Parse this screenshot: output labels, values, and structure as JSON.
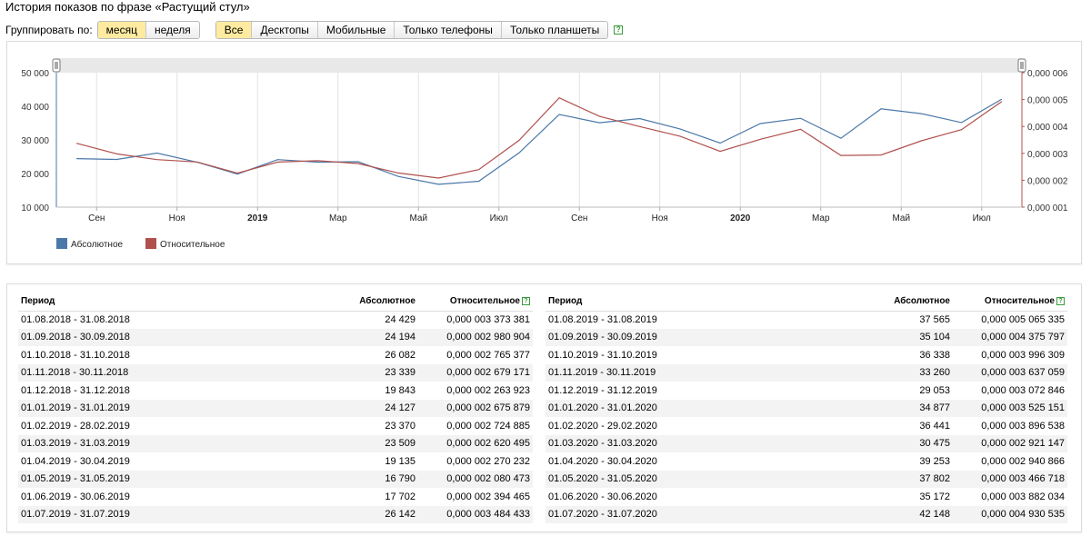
{
  "title": "История показов по фразе «Растущий стул»",
  "group": {
    "label": "Группировать по:",
    "options": [
      "месяц",
      "неделя"
    ],
    "selected": 0
  },
  "devices": {
    "options": [
      "Все",
      "Десктопы",
      "Мобильные",
      "Только телефоны",
      "Только планшеты"
    ],
    "selected": 0,
    "help": "?"
  },
  "chart_data": {
    "type": "line",
    "categories": [
      "2018-08",
      "2018-09",
      "2018-10",
      "2018-11",
      "2018-12",
      "2019-01",
      "2019-02",
      "2019-03",
      "2019-04",
      "2019-05",
      "2019-06",
      "2019-07",
      "2019-08",
      "2019-09",
      "2019-10",
      "2019-11",
      "2019-12",
      "2020-01",
      "2020-02",
      "2020-03",
      "2020-04",
      "2020-05",
      "2020-06",
      "2020-07"
    ],
    "x_tick_labels": [
      "Сен",
      "Ноя",
      "2019",
      "Мар",
      "Май",
      "Июл",
      "Сен",
      "Ноя",
      "2020",
      "Мар",
      "Май",
      "Июл"
    ],
    "y_left_ticks": [
      "10 000",
      "20 000",
      "30 000",
      "40 000",
      "50 000"
    ],
    "y_right_ticks": [
      "0,000 001",
      "0,000 002",
      "0,000 003",
      "0,000 004",
      "0,000 005",
      "0,000 006"
    ],
    "y_left_range": [
      10000,
      50000
    ],
    "y_right_range": [
      1e-06,
      6e-06
    ],
    "series": [
      {
        "name": "Абсолютное",
        "color": "#4a78a8",
        "axis": "left",
        "values": [
          24429,
          24194,
          26082,
          23339,
          19843,
          24127,
          23370,
          23509,
          19135,
          16790,
          17702,
          26142,
          37565,
          35104,
          36338,
          33260,
          29053,
          34877,
          36441,
          30475,
          39253,
          37802,
          35172,
          42148
        ]
      },
      {
        "name": "Относительное",
        "color": "#b0504d",
        "axis": "right",
        "values": [
          3.373381e-06,
          2.980904e-06,
          2.765377e-06,
          2.679171e-06,
          2.263923e-06,
          2.675879e-06,
          2.724885e-06,
          2.620495e-06,
          2.270232e-06,
          2.080473e-06,
          2.394465e-06,
          3.484433e-06,
          5.065335e-06,
          4.375797e-06,
          3.996309e-06,
          3.637059e-06,
          3.072846e-06,
          3.525151e-06,
          3.896538e-06,
          2.921147e-06,
          2.940866e-06,
          3.466718e-06,
          3.882034e-06,
          4.930535e-06
        ]
      }
    ]
  },
  "table": {
    "headers": {
      "period": "Период",
      "absolute": "Абсолютное",
      "relative": "Относительное",
      "help": "?"
    },
    "left": [
      [
        "01.08.2018 - 31.08.2018",
        "24 429",
        "0,000 003 373 381"
      ],
      [
        "01.09.2018 - 30.09.2018",
        "24 194",
        "0,000 002 980 904"
      ],
      [
        "01.10.2018 - 31.10.2018",
        "26 082",
        "0,000 002 765 377"
      ],
      [
        "01.11.2018 - 30.11.2018",
        "23 339",
        "0,000 002 679 171"
      ],
      [
        "01.12.2018 - 31.12.2018",
        "19 843",
        "0,000 002 263 923"
      ],
      [
        "01.01.2019 - 31.01.2019",
        "24 127",
        "0,000 002 675 879"
      ],
      [
        "01.02.2019 - 28.02.2019",
        "23 370",
        "0,000 002 724 885"
      ],
      [
        "01.03.2019 - 31.03.2019",
        "23 509",
        "0,000 002 620 495"
      ],
      [
        "01.04.2019 - 30.04.2019",
        "19 135",
        "0,000 002 270 232"
      ],
      [
        "01.05.2019 - 31.05.2019",
        "16 790",
        "0,000 002 080 473"
      ],
      [
        "01.06.2019 - 30.06.2019",
        "17 702",
        "0,000 002 394 465"
      ],
      [
        "01.07.2019 - 31.07.2019",
        "26 142",
        "0,000 003 484 433"
      ]
    ],
    "right": [
      [
        "01.08.2019 - 31.08.2019",
        "37 565",
        "0,000 005 065 335"
      ],
      [
        "01.09.2019 - 30.09.2019",
        "35 104",
        "0,000 004 375 797"
      ],
      [
        "01.10.2019 - 31.10.2019",
        "36 338",
        "0,000 003 996 309"
      ],
      [
        "01.11.2019 - 30.11.2019",
        "33 260",
        "0,000 003 637 059"
      ],
      [
        "01.12.2019 - 31.12.2019",
        "29 053",
        "0,000 003 072 846"
      ],
      [
        "01.01.2020 - 31.01.2020",
        "34 877",
        "0,000 003 525 151"
      ],
      [
        "01.02.2020 - 29.02.2020",
        "36 441",
        "0,000 003 896 538"
      ],
      [
        "01.03.2020 - 31.03.2020",
        "30 475",
        "0,000 002 921 147"
      ],
      [
        "01.04.2020 - 30.04.2020",
        "39 253",
        "0,000 002 940 866"
      ],
      [
        "01.05.2020 - 31.05.2020",
        "37 802",
        "0,000 003 466 718"
      ],
      [
        "01.06.2020 - 30.06.2020",
        "35 172",
        "0,000 003 882 034"
      ],
      [
        "01.07.2020 - 31.07.2020",
        "42 148",
        "0,000 004 930 535"
      ]
    ]
  }
}
